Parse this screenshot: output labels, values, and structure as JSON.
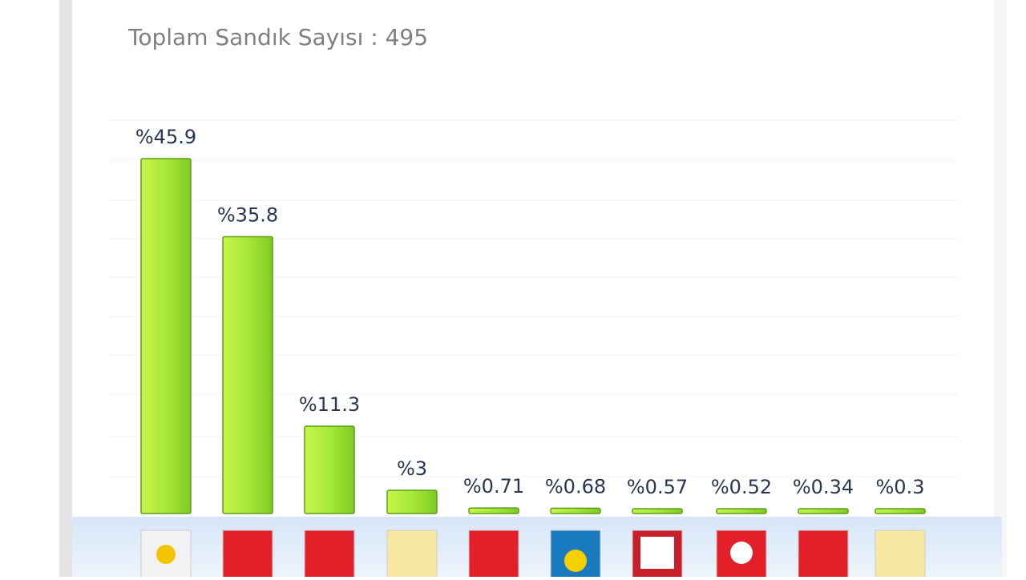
{
  "chart_data": {
    "type": "bar",
    "title": "Toplam Sandık Sayısı : 495",
    "values": [
      45.9,
      35.8,
      11.3,
      3,
      0.71,
      0.68,
      0.57,
      0.52,
      0.34,
      0.3
    ],
    "value_labels": [
      "%45.9",
      "%35.8",
      "%11.3",
      "%3",
      "%0.71",
      "%0.68",
      "%0.57",
      "%0.52",
      "%0.34",
      "%0.3"
    ],
    "color": "#9edf2e"
  }
}
